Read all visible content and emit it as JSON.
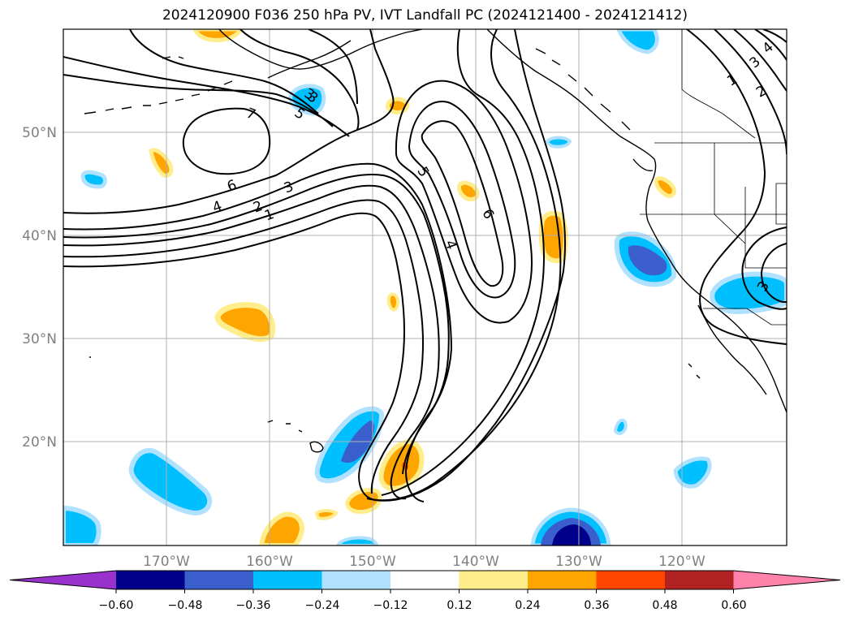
{
  "title": "2024120900 F036 250 hPa PV, IVT Landfall PC (2024121400 - 2024121412)",
  "lat_labels": [
    "50°N",
    "40°N",
    "30°N",
    "20°N"
  ],
  "lon_labels": [
    "170°W",
    "160°W",
    "150°W",
    "140°W",
    "130°W",
    "120°W"
  ],
  "colorbar": {
    "ticks": [
      "−0.60",
      "−0.48",
      "−0.36",
      "−0.24",
      "−0.12",
      "0.12",
      "0.24",
      "0.36",
      "0.48",
      "0.60"
    ],
    "colors": [
      "#9932cc",
      "#00008b",
      "#3a5fcd",
      "#00bfff",
      "#b0e2ff",
      "#ffffff",
      "#ffec8b",
      "#ffa500",
      "#ff4500",
      "#b22222",
      "#ff82ab"
    ]
  },
  "contour_labels": [
    "7",
    "3",
    "5",
    "6",
    "4",
    "2",
    "1",
    "3",
    "5",
    "6",
    "4",
    "3",
    "1",
    "2",
    "3",
    "4",
    "3"
  ],
  "colors": {
    "strong_negative": "#00008b",
    "negative": "#3a5fcd",
    "moderate_negative": "#00bfff",
    "weak_negative": "#b0e2ff",
    "weak_positive": "#ffec8b",
    "positive": "#ffa500",
    "strong_positive": "#ff4500"
  }
}
